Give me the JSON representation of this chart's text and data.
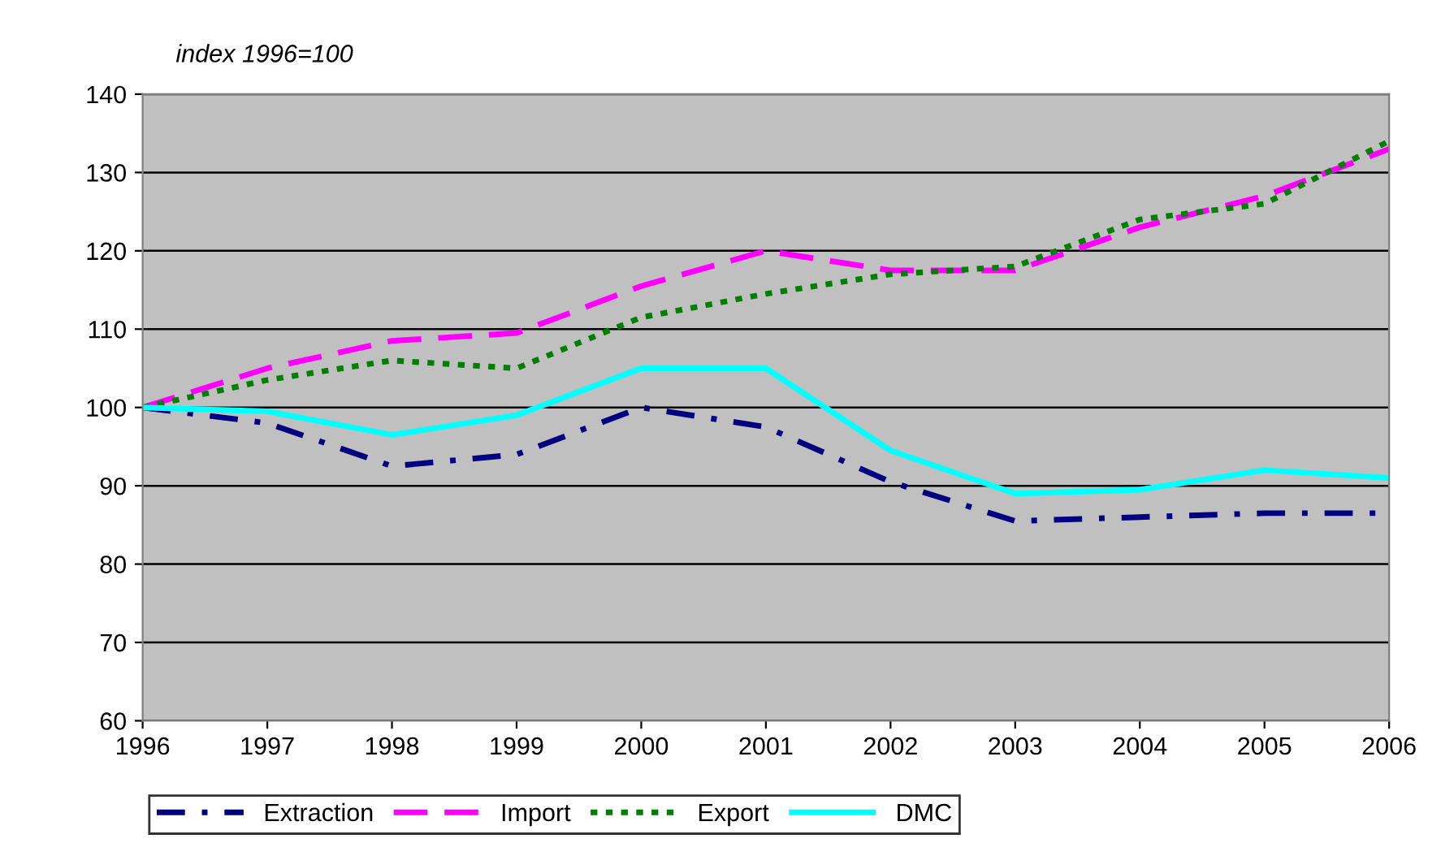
{
  "chart_data": {
    "type": "line",
    "annotations": [
      "index 1996=100"
    ],
    "x": [
      1996,
      1997,
      1998,
      1999,
      2000,
      2001,
      2002,
      2003,
      2004,
      2005,
      2006
    ],
    "series": [
      {
        "name": "Extraction",
        "color": "#000080",
        "line_style": "dashdot",
        "values": [
          100,
          98,
          92.5,
          94,
          100,
          97.5,
          90.5,
          85.5,
          86,
          86.5,
          86.5
        ]
      },
      {
        "name": "Import",
        "color": "#ff00ff",
        "line_style": "dashed",
        "values": [
          100,
          105,
          108.5,
          109.5,
          115.5,
          120,
          117.5,
          117.5,
          123,
          127,
          133
        ]
      },
      {
        "name": "Export",
        "color": "#008000",
        "line_style": "dotted",
        "values": [
          100,
          103.5,
          106,
          105,
          111.5,
          114.5,
          117,
          118,
          124,
          126,
          134
        ]
      },
      {
        "name": "DMC",
        "color": "#00ffff",
        "line_style": "solid",
        "values": [
          100,
          99.5,
          96.5,
          99,
          105,
          105,
          94.5,
          89,
          89.5,
          92,
          91
        ]
      }
    ],
    "xlim": [
      1996,
      2006
    ],
    "xticks": [
      1996,
      1997,
      1998,
      1999,
      2000,
      2001,
      2002,
      2003,
      2004,
      2005,
      2006
    ],
    "ylim": [
      60,
      140
    ],
    "yticks": [
      60,
      70,
      80,
      90,
      100,
      110,
      120,
      130,
      140
    ],
    "grid": "y",
    "legend": "bottom left"
  }
}
